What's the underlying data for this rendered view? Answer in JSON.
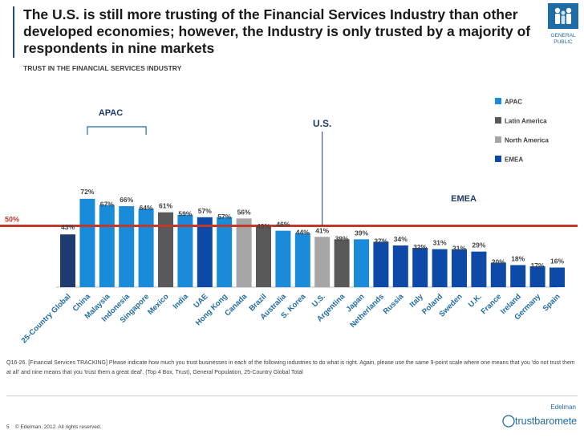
{
  "header": {
    "title": "The U.S. is still more trusting of the Financial Services Industry than other developed economies; however, the Industry is only trusted by a majority of respondents in nine markets",
    "subtitle": "TRUST IN THE FINANCIAL SERVICES INDUSTRY"
  },
  "badge": {
    "line1": "GENERAL",
    "line2": "PUBLIC",
    "icon": "people-group-icon"
  },
  "chart_data": {
    "type": "bar",
    "title": "TRUST IN THE FINANCIAL SERVICES INDUSTRY",
    "xlabel": "",
    "ylabel": "",
    "ylim": [
      0,
      100
    ],
    "value_suffix": "%",
    "categories": [
      "25-Country Global",
      "China",
      "Malaysia",
      "Indonesia",
      "Singapore",
      "Mexico",
      "India",
      "UAE",
      "Hong Kong",
      "Canada",
      "Brazil",
      "Australia",
      "S. Korea",
      "U.S.",
      "Argentina",
      "Japan",
      "Netherlands",
      "Russia",
      "Italy",
      "Poland",
      "Sweden",
      "U.K.",
      "France",
      "Ireland",
      "Germany",
      "Spain"
    ],
    "values": [
      43,
      72,
      67,
      66,
      64,
      61,
      59,
      57,
      57,
      56,
      49,
      46,
      44,
      41,
      39,
      39,
      37,
      34,
      32,
      31,
      31,
      29,
      20,
      18,
      17,
      16
    ],
    "groups": [
      "Global",
      "APAC",
      "APAC",
      "APAC",
      "APAC",
      "Latin America",
      "APAC",
      "EMEA",
      "APAC",
      "North America",
      "Latin America",
      "APAC",
      "APAC",
      "North America",
      "Latin America",
      "APAC",
      "EMEA",
      "EMEA",
      "EMEA",
      "EMEA",
      "EMEA",
      "EMEA",
      "EMEA",
      "EMEA",
      "EMEA",
      "EMEA"
    ],
    "legend": [
      {
        "name": "APAC",
        "color": "#1a8bd9"
      },
      {
        "name": "Latin America",
        "color": "#595959"
      },
      {
        "name": "North America",
        "color": "#a6a6a6"
      },
      {
        "name": "EMEA",
        "color": "#0d4aa8"
      }
    ],
    "group_colors": {
      "Global": "#1f3a6e",
      "APAC": "#1a8bd9",
      "Latin America": "#595959",
      "North America": "#a6a6a6",
      "EMEA": "#0d4aa8"
    },
    "legend_position": "right",
    "reference_line": {
      "value": 50,
      "label": "50%",
      "color": "#c0392b"
    },
    "annotations": [
      {
        "text": "APAC"
      },
      {
        "text": "U.S."
      },
      {
        "text": "EMEA"
      }
    ]
  },
  "footnote": "Q16-26. [Financial Services TRACKING] Please indicate how much you trust businesses in each of the following industries to do what is right.  Again, please use the same 9-point scale where one means that you 'do not trust them at all' and nine means that you 'trust them a great deal'.  (Top 4 Box, Trust), General Population, 25-Country Global Total",
  "footer": {
    "page_number": "5",
    "copyright": "© Edelman, 2012. All rights reserved.",
    "brand_top": "Edelman",
    "brand_main": "trustbarometer"
  }
}
